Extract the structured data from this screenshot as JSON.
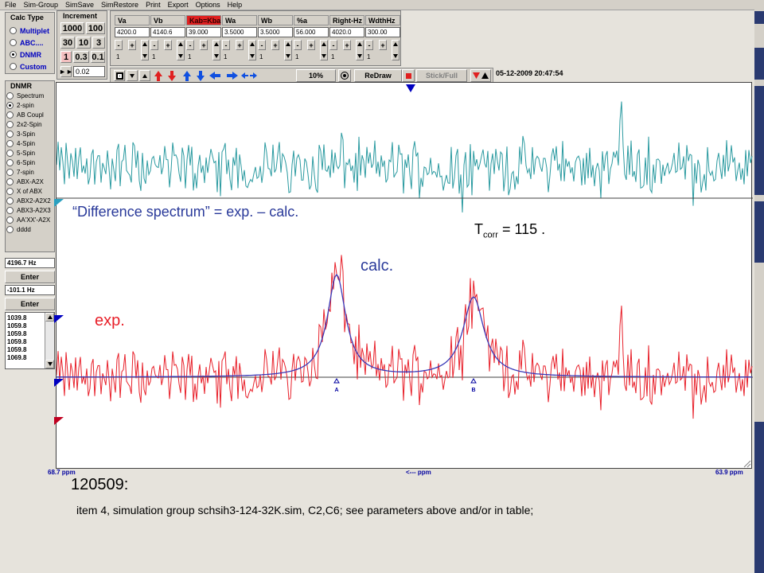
{
  "menu": [
    "File",
    "Sim-Group",
    "SimSave",
    "SimRestore",
    "Print",
    "Export",
    "Options",
    "Help"
  ],
  "calc_type": {
    "title": "Calc Type",
    "options": [
      "Multiplet",
      "ABC....",
      "DNMR",
      "Custom"
    ],
    "selected": 2
  },
  "increment": {
    "title": "Increment",
    "buttons": [
      "1000",
      "100",
      "30",
      "10",
      "3",
      "1",
      "0.3",
      "0.1"
    ],
    "value": "0.02"
  },
  "params": [
    {
      "name": "Va",
      "value": "4200.0",
      "step": "1"
    },
    {
      "name": "Vb",
      "value": "4140.6",
      "step": "1"
    },
    {
      "name": "Kab=Kba",
      "value": "39.000",
      "step": "1"
    },
    {
      "name": "Wa",
      "value": "3.5000",
      "step": "1"
    },
    {
      "name": "Wb",
      "value": "3.5000",
      "step": "1"
    },
    {
      "name": "%a",
      "value": "56.000",
      "step": "1"
    },
    {
      "name": "Right-Hz",
      "value": "4020.0",
      "step": "1"
    },
    {
      "name": "WdthHz",
      "value": "300.00",
      "step": "1"
    }
  ],
  "toolbar": {
    "zoom": "10%",
    "redraw": "ReDraw",
    "stick_full": "Stick/Full",
    "timestamp": "05-12-2009  20:47:54"
  },
  "dnmr_panel": {
    "title": "DNMR",
    "options": [
      "Spectrum",
      "2-spin",
      "AB Coupl",
      "2x2-Spin",
      "3-Spin",
      "4-Spin",
      "5-Spin",
      "6-Spin",
      "7-spin",
      "ABX-A2X",
      "X of ABX",
      "ABX2-A2X2",
      "ABX3-A2X3",
      "AA'XX'-A2X",
      "dddd"
    ],
    "selected": 1
  },
  "cursor": {
    "hz1": "4196.7 Hz",
    "enter1": "Enter",
    "hz2": "-101.1 Hz",
    "enter2": "Enter"
  },
  "peak_list": [
    "1039.8",
    "1059.8",
    "1059.8",
    "1059.8",
    "1059.8",
    "1069.8"
  ],
  "axis": {
    "left": "68.7 ppm",
    "center": "<--- ppm",
    "right": "63.9 ppm"
  },
  "peak_markers": [
    "A",
    "B"
  ],
  "annotations": {
    "difference": "“Difference spectrum” = exp. – calc.",
    "t_main": "T",
    "t_sub": "corr",
    "t_value": " = 115  .",
    "calc": "calc.",
    "exp": "exp.",
    "date": "120509:",
    "note": "item 4, simulation group schsih3-124-32K.sim,  C2,C6; see parameters above and/or in table;"
  },
  "colors": {
    "exp": "#e8202a",
    "calc": "#3a3ab8",
    "diff": "#2a9aa0",
    "accent": "#0000c0"
  }
}
